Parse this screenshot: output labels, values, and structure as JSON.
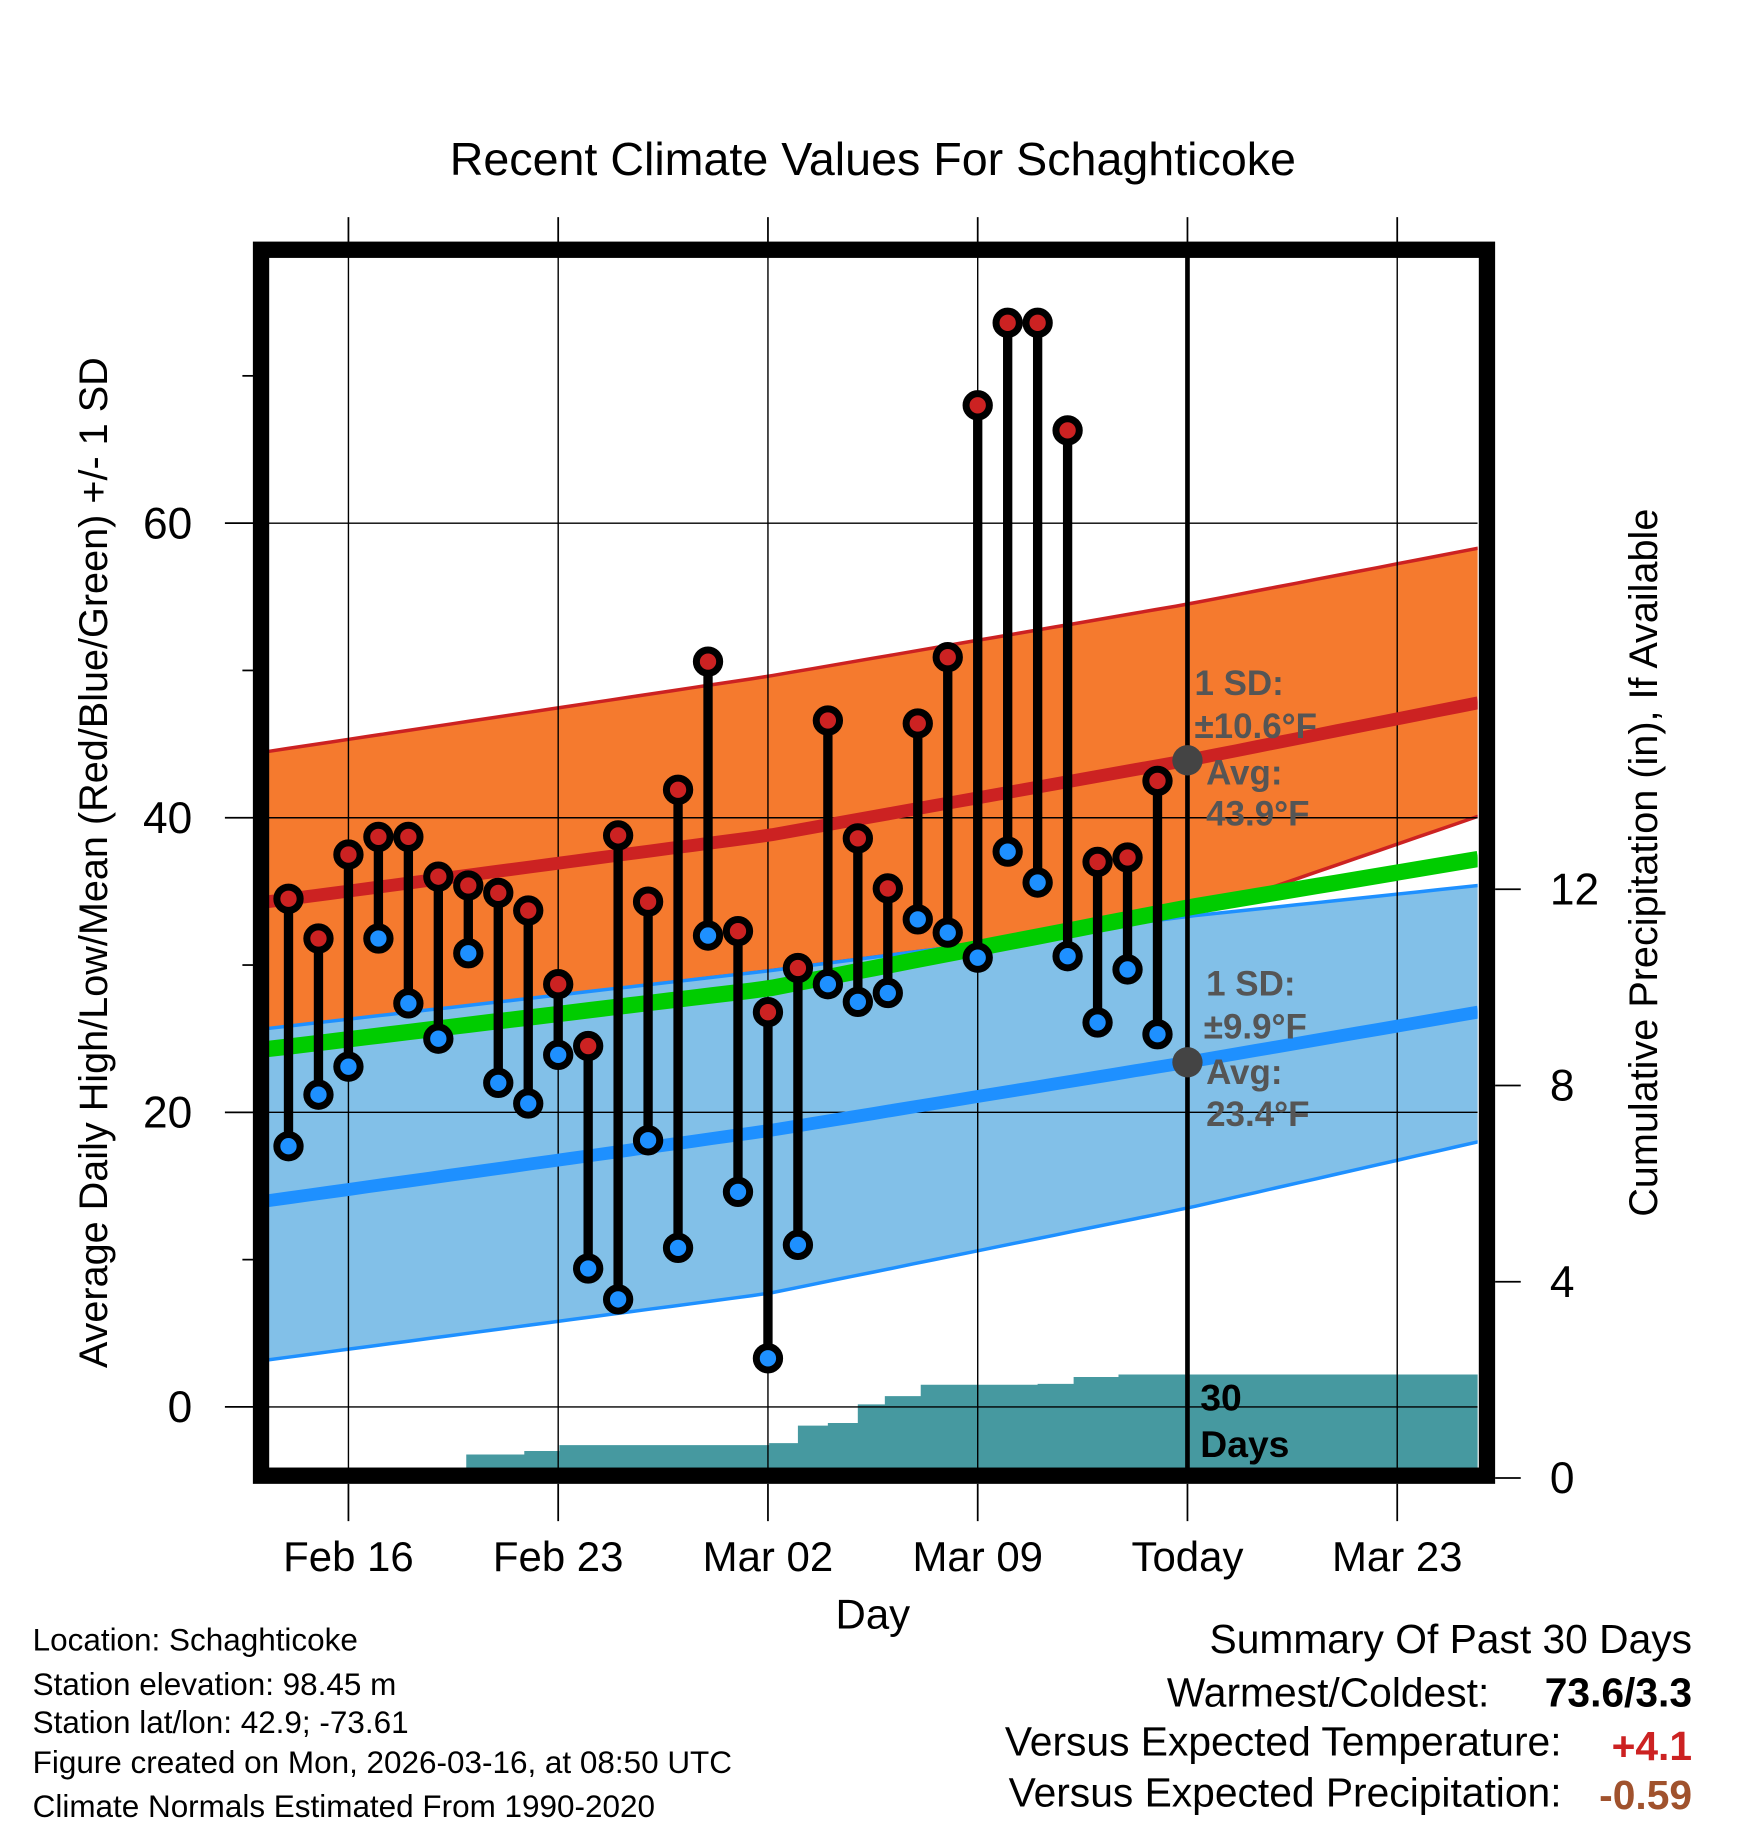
{
  "chart_data": {
    "type": "line",
    "title": "Recent Climate Values For Schaghticoke",
    "xlabel": "Day",
    "ylabel": "Average Daily High/Low/Mean (Red/Blue/Green) +/- 1 SD",
    "y2label": "Cumulative Precipitation (in), If Available",
    "ylim": [
      -4.2,
      78.1
    ],
    "y2lim": [
      0,
      24.7
    ],
    "yticks": [
      "0",
      "20",
      "40",
      "60"
    ],
    "ytick_values": [
      0,
      20,
      40,
      60
    ],
    "y2ticks": [
      "0",
      "4",
      "8",
      "12"
    ],
    "y2tick_values": [
      0,
      4,
      8,
      12
    ],
    "x_unit": "days from Feb 16",
    "xlim": [
      -2.68,
      37.7
    ],
    "xticks": [
      "Feb 16",
      "Feb 23",
      "Mar 02",
      "Mar 09",
      "Today",
      "Mar 23"
    ],
    "xtick_values": [
      0,
      7,
      14,
      21,
      28,
      35
    ],
    "grid": true,
    "dates": [
      "Feb 14",
      "Feb 15",
      "Feb 16",
      "Feb 17",
      "Feb 18",
      "Feb 19",
      "Feb 20",
      "Feb 21",
      "Feb 22",
      "Feb 23",
      "Feb 24",
      "Feb 25",
      "Feb 26",
      "Feb 27",
      "Feb 28",
      "Mar 01",
      "Mar 02",
      "Mar 03",
      "Mar 04",
      "Mar 05",
      "Mar 06",
      "Mar 07",
      "Mar 08",
      "Mar 09",
      "Mar 10",
      "Mar 11",
      "Mar 12",
      "Mar 13",
      "Mar 14",
      "Mar 15"
    ],
    "highs": [
      34.5,
      31.8,
      37.5,
      38.7,
      38.7,
      36.0,
      35.4,
      34.9,
      33.7,
      28.7,
      24.5,
      38.8,
      34.3,
      41.9,
      50.6,
      32.3,
      26.8,
      29.8,
      46.6,
      38.6,
      35.2,
      46.4,
      50.9,
      68.0,
      73.6,
      73.6,
      66.3,
      37.0,
      37.3,
      42.5
    ],
    "lows": [
      17.7,
      21.2,
      23.1,
      31.8,
      27.4,
      25.0,
      30.8,
      22.0,
      20.6,
      23.9,
      9.4,
      7.3,
      18.1,
      10.8,
      32.0,
      14.6,
      3.3,
      11.0,
      28.7,
      27.5,
      28.1,
      33.1,
      32.2,
      30.5,
      37.7,
      35.6,
      30.6,
      26.1,
      29.7,
      25.3
    ],
    "first_day_offset": -2,
    "normals_x": [
      -2.68,
      14,
      28,
      37.7
    ],
    "normal_high": [
      34.3,
      38.8,
      43.9,
      47.8
    ],
    "normal_high_upper": [
      44.5,
      49.6,
      54.5,
      58.3
    ],
    "normal_high_lower": [
      25.6,
      29.6,
      33.3,
      40.1
    ],
    "normal_low": [
      14.0,
      18.75,
      23.4,
      26.8
    ],
    "normal_low_upper": [
      25.7,
      29.6,
      33.3,
      35.4
    ],
    "normal_low_lower": [
      3.2,
      7.7,
      13.5,
      18.0
    ],
    "normal_mean": [
      24.3,
      28.4,
      33.9,
      37.2
    ],
    "precip_x": [
      -2.68,
      3.46,
      3.93,
      5.87,
      7.04,
      14.04,
      15.0,
      16.0,
      17.0,
      17.9,
      19.1,
      23.0,
      24.2,
      25.7,
      37.7
    ],
    "precip_cum": [
      0,
      0,
      0.48,
      0.55,
      0.67,
      0.71,
      1.07,
      1.12,
      1.5,
      1.67,
      1.9,
      1.92,
      2.06,
      2.11,
      2.11
    ],
    "today_offset": 28,
    "annotations": {
      "high_sd_label": "1 SD:",
      "high_sd_value": "±10.6°F",
      "high_avg_label": "Avg:",
      "high_avg_value": "43.9°F",
      "high_avg": 43.9,
      "low_sd_label": "1 SD:",
      "low_sd_value": "±9.9°F",
      "low_avg_label": "Avg:",
      "low_avg_value": "23.4°F",
      "low_avg": 23.4,
      "period_line1": "30",
      "period_line2": "Days"
    },
    "colors": {
      "high_band": "#f57a2e",
      "high_line": "#cc2222",
      "low_band": "#82c0e8",
      "low_line": "#1e90ff",
      "mean_line": "#00cc00",
      "precip": "#4699a0",
      "annotation": "#555555"
    }
  },
  "info": {
    "location": "Location: Schaghticoke",
    "elevation": "Station elevation: 98.45 m",
    "latlon": "Station lat/lon: 42.9; -73.61",
    "created": "Figure created on Mon, 2026-03-16, at 08:50 UTC",
    "normals": "Climate Normals Estimated From 1990-2020"
  },
  "summary": {
    "title": "Summary Of Past 30 Days",
    "warm_cold_label": "Warmest/Coldest:",
    "warm_cold_value": "73.6/3.3",
    "temp_label": "Versus Expected Temperature:",
    "temp_value": "+4.1",
    "temp_color": "#cc2222",
    "precip_label": "Versus Expected Precipitation:",
    "precip_value": "-0.59",
    "precip_color": "#a0522d"
  }
}
